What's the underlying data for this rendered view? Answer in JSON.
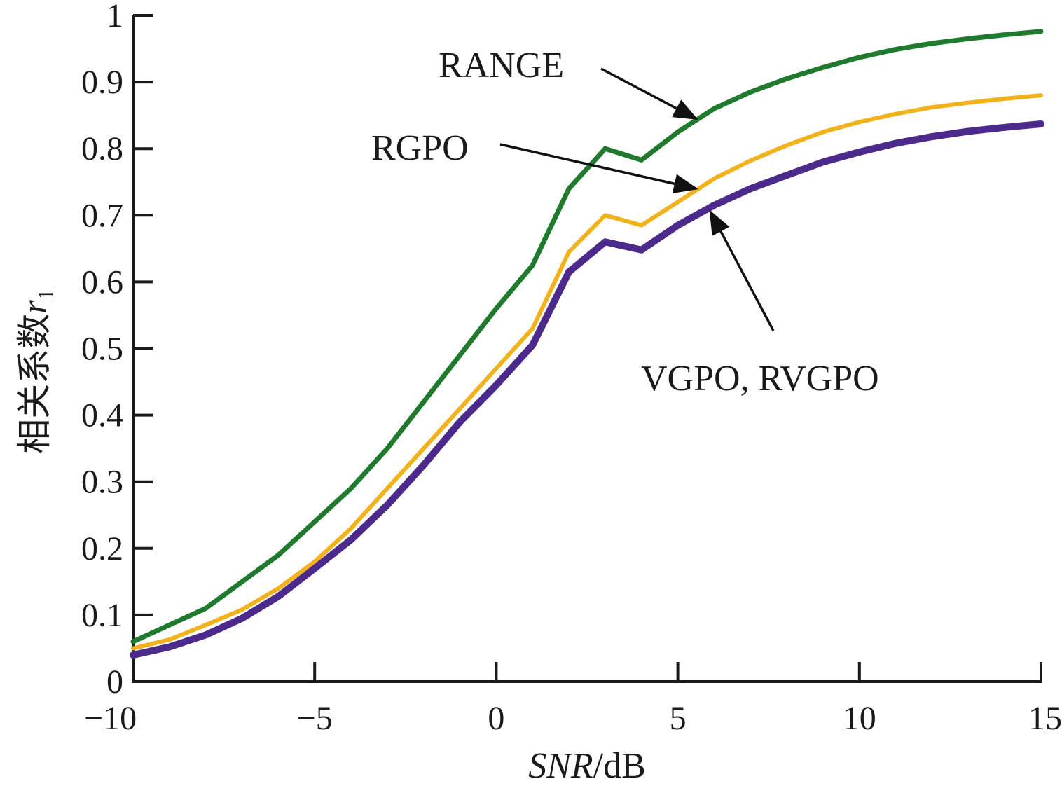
{
  "chart_data": {
    "type": "line",
    "xlabel": {
      "italic": "SNR",
      "rest": "/dB"
    },
    "ylabel": {
      "text": "相关系数",
      "var": "r",
      "sub": "1"
    },
    "xlim": [
      -10,
      15
    ],
    "ylim": [
      0,
      1
    ],
    "xticks": [
      -10,
      -5,
      0,
      5,
      10,
      15
    ],
    "xtick_labels": [
      "−10",
      "−5",
      "0",
      "5",
      "10",
      "15"
    ],
    "yticks": [
      0,
      0.1,
      0.2,
      0.3,
      0.4,
      0.5,
      0.6,
      0.7,
      0.8,
      0.9,
      1
    ],
    "ytick_labels": [
      "0",
      "0.1",
      "0.2",
      "0.3",
      "0.4",
      "0.5",
      "0.6",
      "0.7",
      "0.8",
      "0.9",
      "1"
    ],
    "grid": false,
    "series": [
      {
        "name": "RANGE",
        "color": "#1f7a2e",
        "x": [
          -10,
          -9,
          -8,
          -7,
          -6,
          -5,
          -4,
          -3,
          -2,
          -1,
          0,
          1,
          2,
          3,
          4,
          5,
          6,
          7,
          8,
          9,
          10,
          11,
          12,
          13,
          14,
          15
        ],
        "y": [
          0.06,
          0.085,
          0.11,
          0.15,
          0.19,
          0.24,
          0.29,
          0.35,
          0.42,
          0.49,
          0.56,
          0.625,
          0.74,
          0.8,
          0.783,
          0.825,
          0.86,
          0.885,
          0.905,
          0.922,
          0.937,
          0.949,
          0.958,
          0.965,
          0.971,
          0.976
        ]
      },
      {
        "name": "RGPO",
        "color": "#f2b21b",
        "x": [
          -10,
          -9,
          -8,
          -7,
          -6,
          -5,
          -4,
          -3,
          -2,
          -1,
          0,
          1,
          2,
          3,
          4,
          5,
          6,
          7,
          8,
          9,
          10,
          11,
          12,
          13,
          14,
          15
        ],
        "y": [
          0.05,
          0.063,
          0.085,
          0.108,
          0.14,
          0.18,
          0.23,
          0.29,
          0.35,
          0.41,
          0.47,
          0.53,
          0.645,
          0.7,
          0.685,
          0.72,
          0.755,
          0.782,
          0.805,
          0.825,
          0.84,
          0.852,
          0.862,
          0.869,
          0.875,
          0.88
        ]
      },
      {
        "name": "VGPO, RVGPO",
        "color": "#4b2a8c",
        "x": [
          -10,
          -9,
          -8,
          -7,
          -6,
          -5,
          -4,
          -3,
          -2,
          -1,
          0,
          1,
          2,
          3,
          4,
          5,
          6,
          7,
          8,
          9,
          10,
          11,
          12,
          13,
          14,
          15
        ],
        "y": [
          0.04,
          0.052,
          0.07,
          0.095,
          0.128,
          0.17,
          0.213,
          0.265,
          0.325,
          0.39,
          0.445,
          0.505,
          0.615,
          0.66,
          0.648,
          0.685,
          0.715,
          0.74,
          0.76,
          0.78,
          0.795,
          0.808,
          0.818,
          0.826,
          0.832,
          0.837
        ]
      }
    ],
    "annotations": [
      {
        "text": "RANGE",
        "target_x": 5.5,
        "target_y": 0.845
      },
      {
        "text": "RGPO",
        "target_x": 5.5,
        "target_y": 0.74
      },
      {
        "text": "VGPO, RVGPO",
        "target_x": 5.9,
        "target_y": 0.705
      }
    ]
  }
}
